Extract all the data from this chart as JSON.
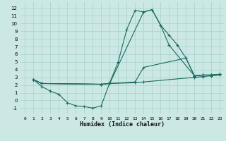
{
  "xlabel": "Humidex (Indice chaleur)",
  "bg_color": "#cce8e5",
  "grid_color": "#a8d0cc",
  "line_color": "#1a6b60",
  "xlim": [
    -0.5,
    23.5
  ],
  "ylim": [
    -1.7,
    12.8
  ],
  "xticks": [
    0,
    1,
    2,
    3,
    4,
    5,
    6,
    7,
    8,
    9,
    10,
    11,
    12,
    13,
    14,
    15,
    16,
    17,
    18,
    19,
    20,
    21,
    22,
    23
  ],
  "yticks": [
    -1,
    0,
    1,
    2,
    3,
    4,
    5,
    6,
    7,
    8,
    9,
    10,
    11,
    12
  ],
  "series": [
    {
      "x": [
        1,
        2,
        3,
        4,
        5,
        6,
        7,
        8,
        9,
        10,
        11,
        12,
        13,
        14,
        15,
        16,
        17,
        18,
        19,
        20,
        21,
        22,
        23
      ],
      "y": [
        2.7,
        1.8,
        1.2,
        0.8,
        -0.3,
        -0.7,
        -0.8,
        -1.0,
        -0.7,
        2.3,
        5.0,
        9.2,
        11.7,
        11.5,
        11.8,
        9.8,
        8.5,
        7.2,
        5.5,
        3.2,
        3.3,
        3.3,
        3.4
      ]
    },
    {
      "x": [
        1,
        2,
        9,
        10,
        13,
        14,
        20,
        21,
        22,
        23
      ],
      "y": [
        2.7,
        2.2,
        2.1,
        2.2,
        2.3,
        2.4,
        3.0,
        3.1,
        3.2,
        3.3
      ]
    },
    {
      "x": [
        1,
        2,
        9,
        10,
        13,
        14,
        19,
        20,
        21,
        22,
        23
      ],
      "y": [
        2.7,
        2.2,
        2.1,
        2.2,
        2.4,
        4.3,
        5.5,
        3.2,
        3.3,
        3.3,
        3.4
      ]
    },
    {
      "x": [
        1,
        2,
        9,
        10,
        14,
        15,
        16,
        17,
        20,
        21,
        22,
        23
      ],
      "y": [
        2.7,
        2.2,
        2.1,
        2.2,
        11.5,
        11.8,
        9.8,
        7.2,
        3.2,
        3.3,
        3.3,
        3.4
      ]
    }
  ]
}
